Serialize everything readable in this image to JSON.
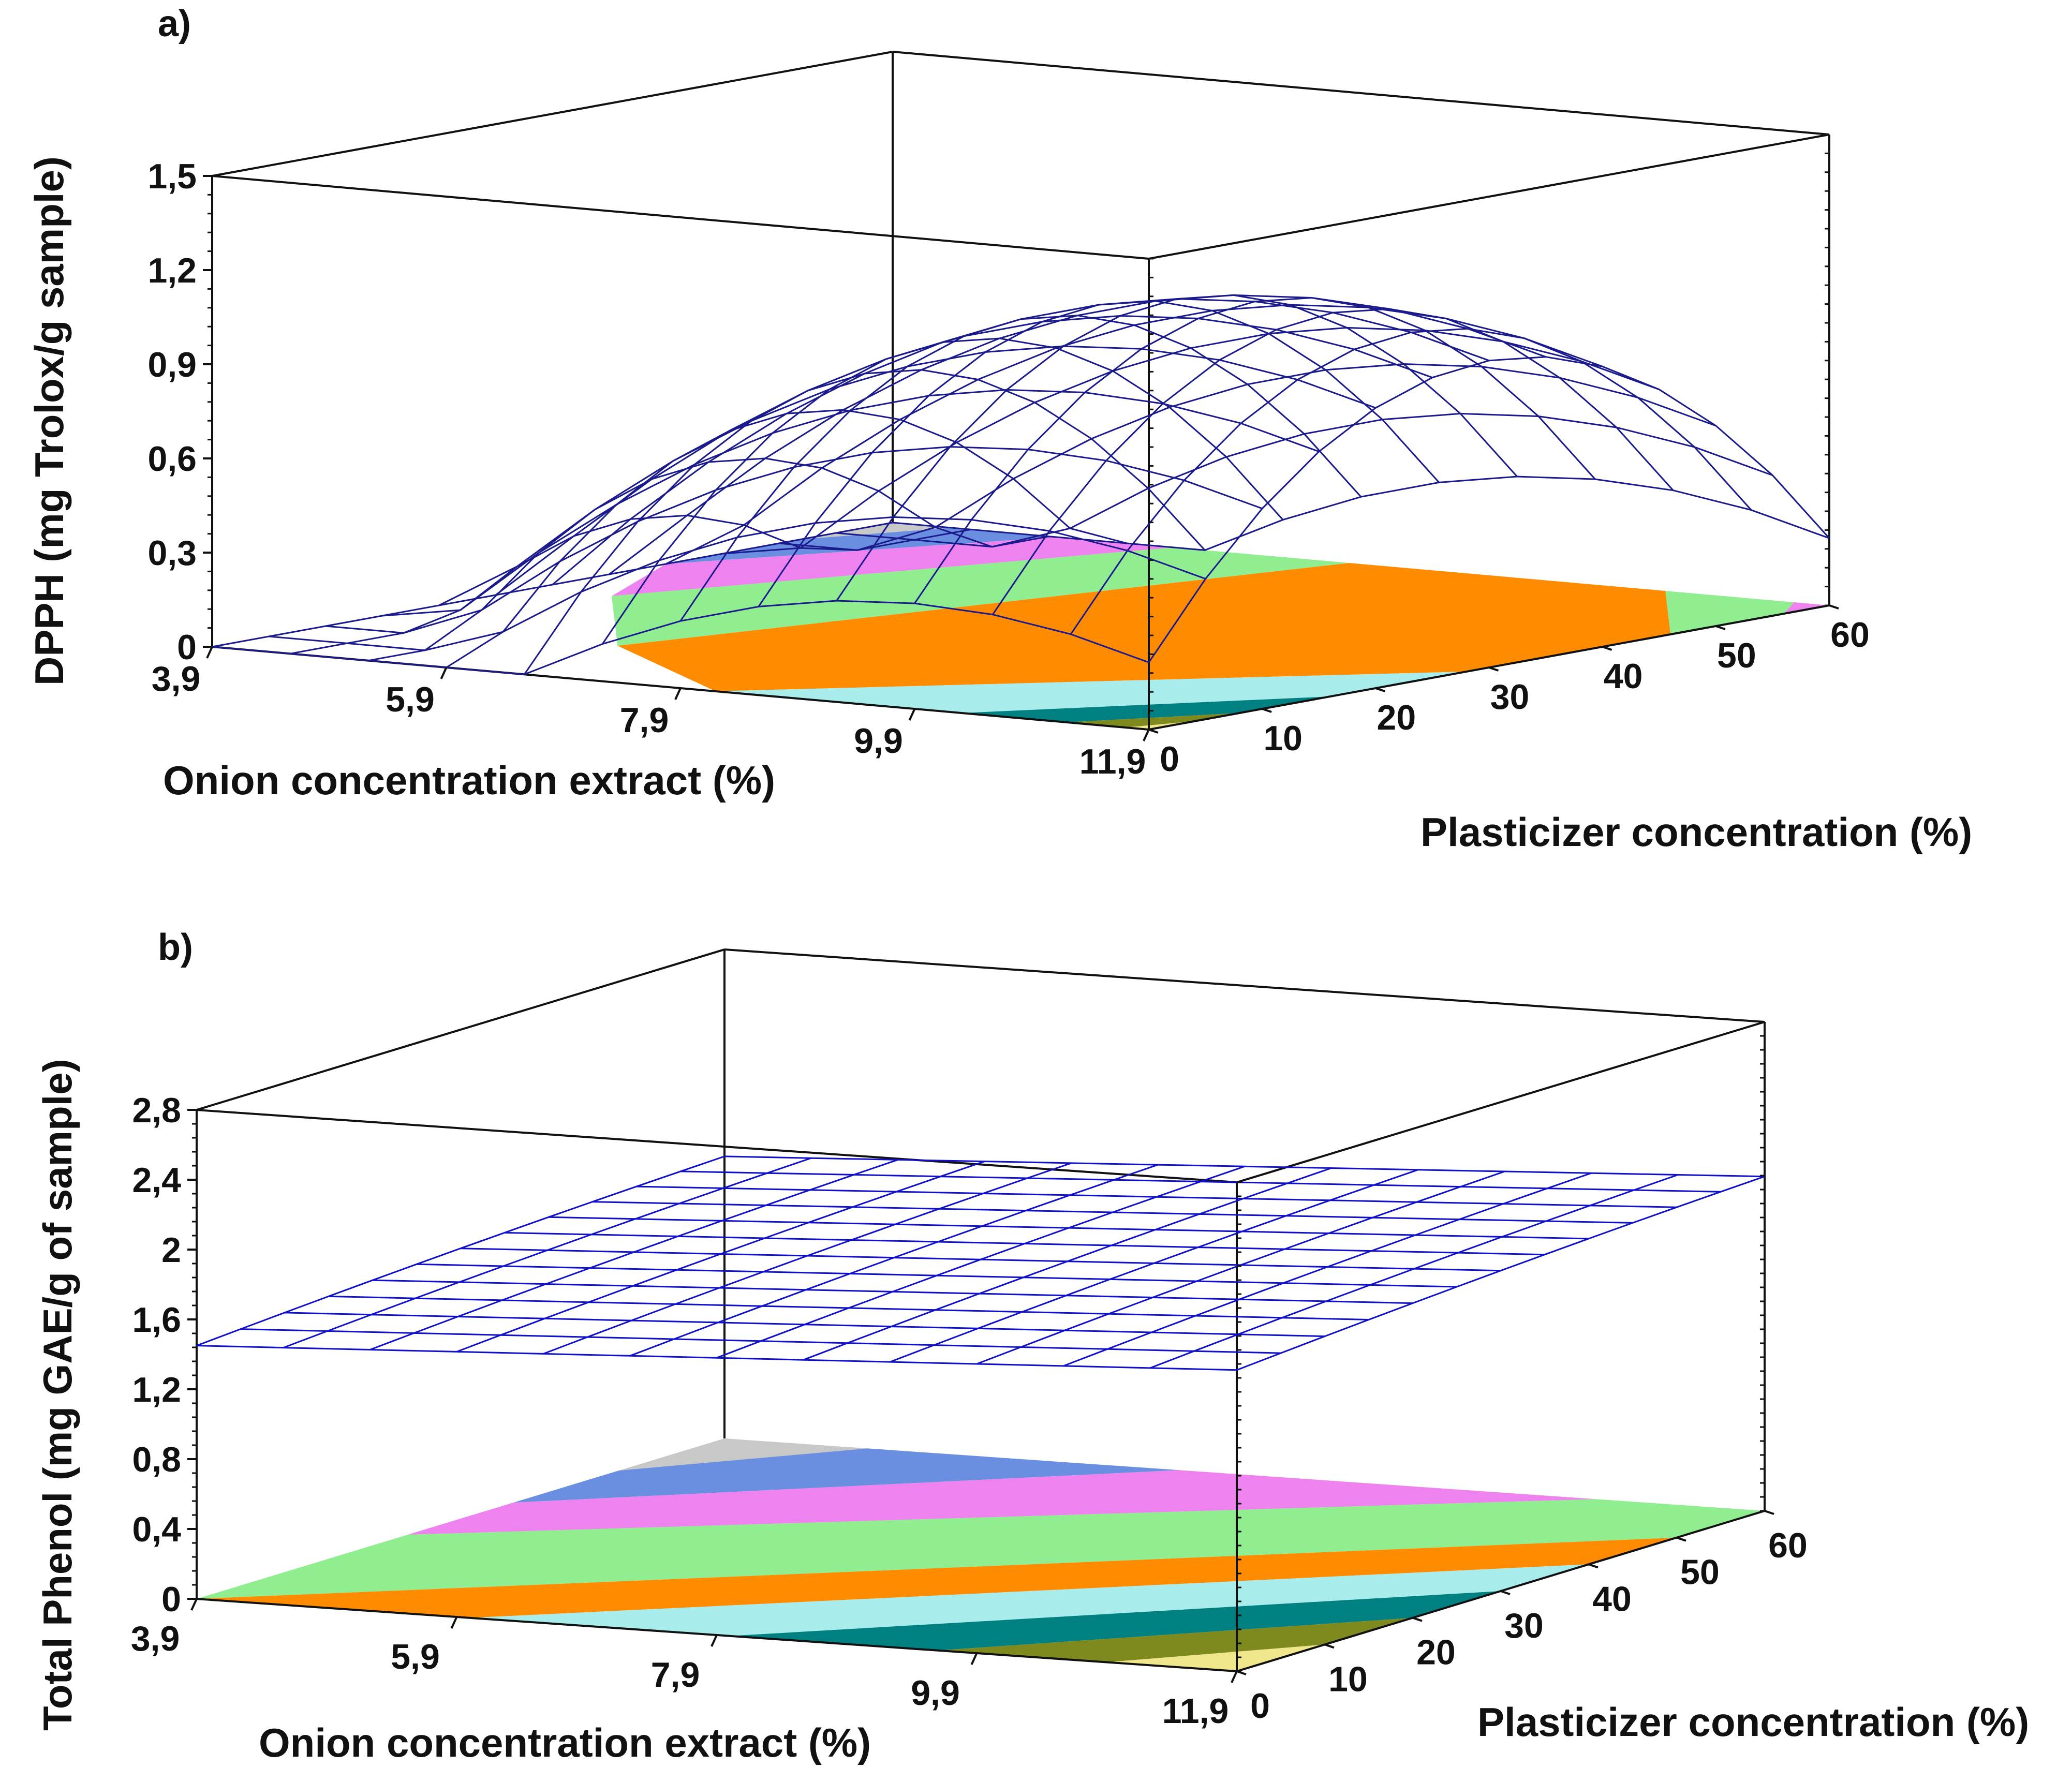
{
  "chart_data": [
    {
      "panel_label": "a)",
      "type": "surface3d",
      "title": "",
      "x_axis": {
        "label": "Onion concentration extract (%)",
        "ticks": [
          "3,9",
          "5,9",
          "7,9",
          "9,9",
          "11,9"
        ],
        "range": [
          3.9,
          11.9
        ]
      },
      "y_axis": {
        "label": "Plasticizer concentration (%)",
        "ticks": [
          "0",
          "10",
          "20",
          "30",
          "40",
          "50",
          "60"
        ],
        "range": [
          0,
          60
        ]
      },
      "z_axis": {
        "label": "DPPH (mg Trolox/g sample)",
        "ticks": [
          "0",
          "0,3",
          "0,6",
          "0,9",
          "1,2",
          "1,5"
        ],
        "range": [
          0,
          1.5
        ]
      },
      "surface": {
        "model": "quadratic",
        "peak_value": 1.1,
        "peak_at": {
          "onion": 9.9,
          "plasticizer": 30
        },
        "edge_value": 0.0
      },
      "contour_colors": [
        "#c8c8c8",
        "#6b8fe0",
        "#ee82ee",
        "#90ee90",
        "#ff8c00",
        "#a8ecec",
        "#008080",
        "#7f8a1e",
        "#f0e68c"
      ],
      "wire_color": "#1a1a8c"
    },
    {
      "panel_label": "b)",
      "type": "surface3d",
      "title": "",
      "x_axis": {
        "label": "Onion concentration extract (%)",
        "ticks": [
          "3,9",
          "5,9",
          "7,9",
          "9,9",
          "11,9"
        ],
        "range": [
          3.9,
          11.9
        ]
      },
      "y_axis": {
        "label": "Plasticizer concentration (%)",
        "ticks": [
          "0",
          "10",
          "20",
          "30",
          "40",
          "50",
          "60"
        ],
        "range": [
          0,
          60
        ]
      },
      "z_axis": {
        "label": "Total Phenol (mg GAE/g of sample)",
        "ticks": [
          "0",
          "0,4",
          "0,8",
          "1,2",
          "1,6",
          "2",
          "2,4",
          "2,8"
        ],
        "range": [
          0,
          2.8
        ]
      },
      "surface": {
        "model": "nearly planar",
        "min_value": 1.45,
        "max_value": 1.95
      },
      "contour_colors": [
        "#c8c8c8",
        "#6b8fe0",
        "#ee82ee",
        "#90ee90",
        "#ff8c00",
        "#a8ecec",
        "#008080",
        "#7f8a1e",
        "#f0e68c"
      ],
      "wire_color": "#1010c8"
    }
  ]
}
